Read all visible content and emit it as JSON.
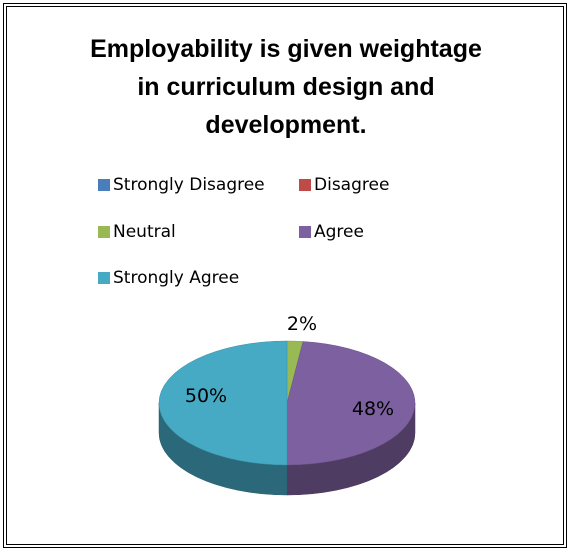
{
  "chart_data": {
    "type": "pie",
    "title": "Employability is given weightage in curriculum design and development.",
    "title_lines": [
      "Employability is given weightage",
      "in curriculum design and",
      "development."
    ],
    "categories": [
      "Strongly Disagree",
      "Disagree",
      "Neutral",
      "Agree",
      "Strongly Agree"
    ],
    "values": [
      0,
      0,
      2,
      48,
      50
    ],
    "value_labels": [
      "",
      "",
      "2%",
      "48%",
      "50%"
    ],
    "colors": [
      "#4a7ebb",
      "#be4b48",
      "#98b954",
      "#7d60a0",
      "#46aac5"
    ],
    "style": "3d",
    "legend_position": "top"
  }
}
